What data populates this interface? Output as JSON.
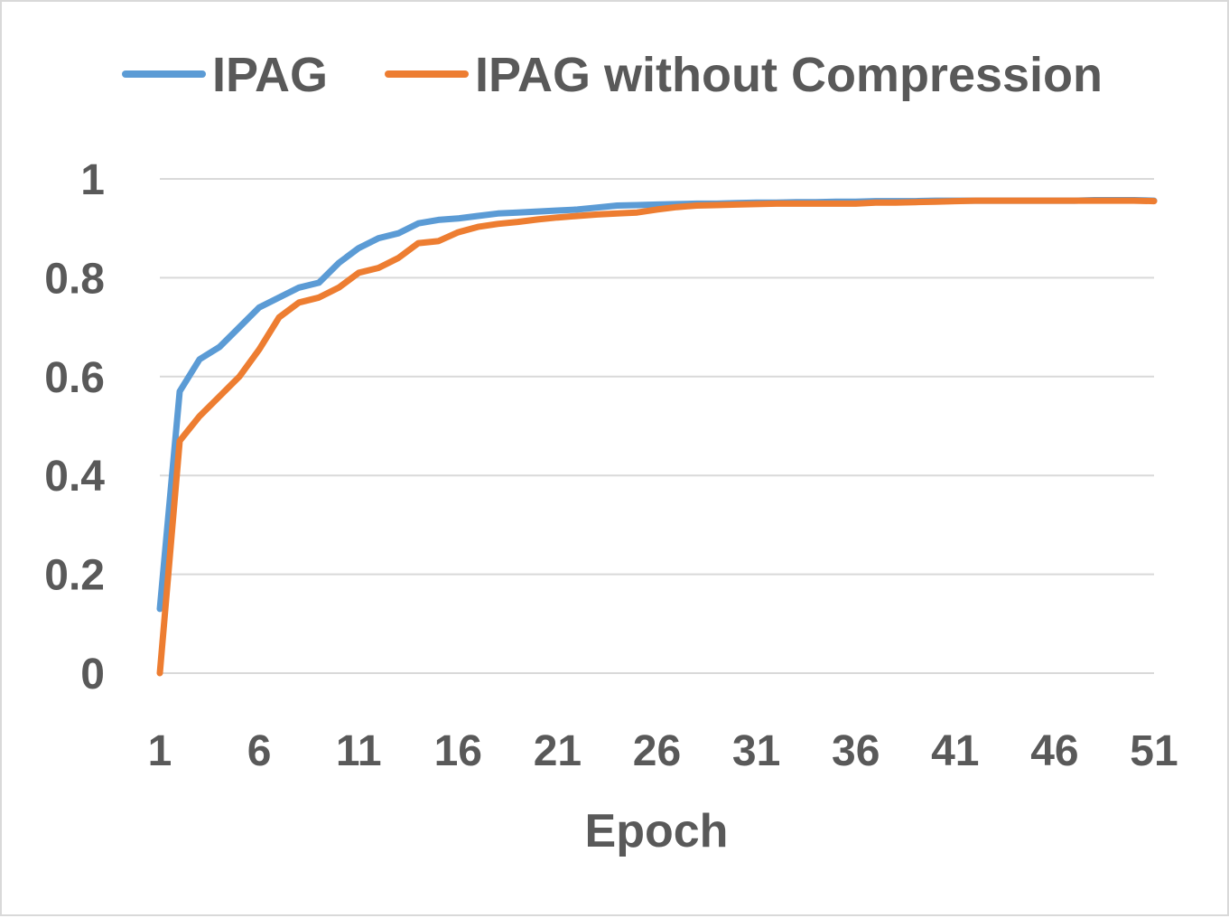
{
  "chart_data": {
    "type": "line",
    "title": "",
    "xlabel": "Epoch",
    "ylabel": "",
    "x": [
      1,
      2,
      3,
      4,
      5,
      6,
      7,
      8,
      9,
      10,
      11,
      12,
      13,
      14,
      15,
      16,
      17,
      18,
      19,
      20,
      21,
      22,
      23,
      24,
      25,
      26,
      27,
      28,
      29,
      30,
      31,
      32,
      33,
      34,
      35,
      36,
      37,
      38,
      39,
      40,
      41,
      42,
      43,
      44,
      45,
      46,
      47,
      48,
      49,
      50,
      51
    ],
    "x_tick_labels": [
      "1",
      "6",
      "11",
      "16",
      "21",
      "26",
      "31",
      "36",
      "41",
      "46",
      "51"
    ],
    "y_tick_labels": [
      "0",
      "0.2",
      "0.4",
      "0.6",
      "0.8",
      "1"
    ],
    "y_ticks": [
      0,
      0.2,
      0.4,
      0.6,
      0.8,
      1
    ],
    "ylim": [
      0,
      1
    ],
    "xlim": [
      1,
      51
    ],
    "grid": "horizontal",
    "legend_position": "top",
    "series": [
      {
        "name": "IPAG",
        "color": "#5b9bd5",
        "values": [
          0.13,
          0.57,
          0.635,
          0.66,
          0.7,
          0.74,
          0.76,
          0.78,
          0.79,
          0.83,
          0.86,
          0.88,
          0.89,
          0.91,
          0.917,
          0.92,
          0.925,
          0.93,
          0.932,
          0.934,
          0.936,
          0.938,
          0.942,
          0.946,
          0.947,
          0.948,
          0.949,
          0.95,
          0.95,
          0.951,
          0.952,
          0.952,
          0.953,
          0.953,
          0.954,
          0.954,
          0.955,
          0.955,
          0.955,
          0.956,
          0.956,
          0.956,
          0.956,
          0.956,
          0.956,
          0.956,
          0.956,
          0.957,
          0.957,
          0.957,
          0.956
        ]
      },
      {
        "name": "IPAG without Compression",
        "color": "#ed7d31",
        "values": [
          0.0,
          0.47,
          0.52,
          0.56,
          0.6,
          0.655,
          0.72,
          0.75,
          0.76,
          0.78,
          0.81,
          0.82,
          0.84,
          0.87,
          0.874,
          0.892,
          0.903,
          0.909,
          0.913,
          0.918,
          0.922,
          0.925,
          0.928,
          0.93,
          0.932,
          0.938,
          0.943,
          0.946,
          0.947,
          0.948,
          0.949,
          0.95,
          0.95,
          0.95,
          0.95,
          0.95,
          0.952,
          0.952,
          0.953,
          0.954,
          0.955,
          0.956,
          0.956,
          0.956,
          0.956,
          0.956,
          0.956,
          0.956,
          0.956,
          0.956,
          0.955
        ]
      }
    ]
  }
}
